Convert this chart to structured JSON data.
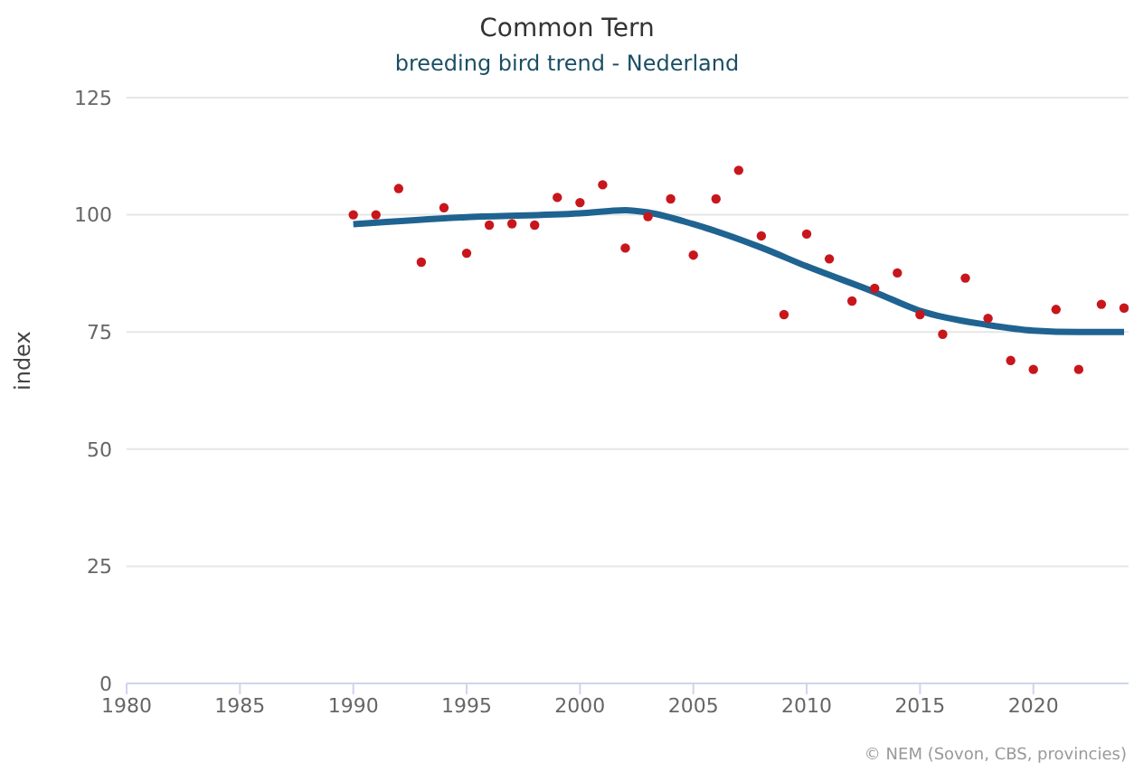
{
  "chart_data": {
    "type": "scatter",
    "title": "Common Tern",
    "subtitle": "breeding bird trend - Nederland",
    "ylabel": "index",
    "xlim": [
      1980,
      2024.2
    ],
    "xticks": [
      1980,
      1985,
      1990,
      1995,
      2000,
      2005,
      2010,
      2015,
      2020
    ],
    "ylim": [
      0,
      125
    ],
    "yticks": [
      0,
      25,
      50,
      75,
      100,
      125
    ],
    "grid": "y",
    "annotations": [
      "© NEM (Sovon, CBS, provincies)"
    ],
    "series": [
      {
        "type": "scatter",
        "color": "#c8161d",
        "marker": "circle",
        "x": [
          1990,
          1991,
          1992,
          1993,
          1994,
          1995,
          1996,
          1997,
          1998,
          1999,
          2000,
          2001,
          2002,
          2003,
          2004,
          2005,
          2006,
          2007,
          2008,
          2009,
          2010,
          2011,
          2012,
          2013,
          2014,
          2015,
          2016,
          2017,
          2018,
          2019,
          2020,
          2021,
          2022,
          2023,
          2024
        ],
        "values": [
          100,
          100,
          105.6,
          89.9,
          101.5,
          91.8,
          97.8,
          98.1,
          97.8,
          103.7,
          102.6,
          106.4,
          92.9,
          99.6,
          103.4,
          91.4,
          103.4,
          109.5,
          95.5,
          78.7,
          95.9,
          90.6,
          81.6,
          84.3,
          87.6,
          78.7,
          74.5,
          86.5,
          77.9,
          68.9,
          67,
          79.8,
          67,
          80.9,
          80.1
        ]
      },
      {
        "type": "line",
        "color": "#1f6391",
        "line_style": "solid",
        "marker": "none",
        "x": [
          1990,
          1995,
          2000,
          2002,
          2003,
          2005,
          2008,
          2010,
          2013,
          2015,
          2018,
          2020,
          2022,
          2024
        ],
        "values": [
          98,
          99.5,
          100.3,
          101,
          100.5,
          98,
          93,
          89,
          83.5,
          79.5,
          76.5,
          75.3,
          75,
          75
        ]
      }
    ]
  }
}
